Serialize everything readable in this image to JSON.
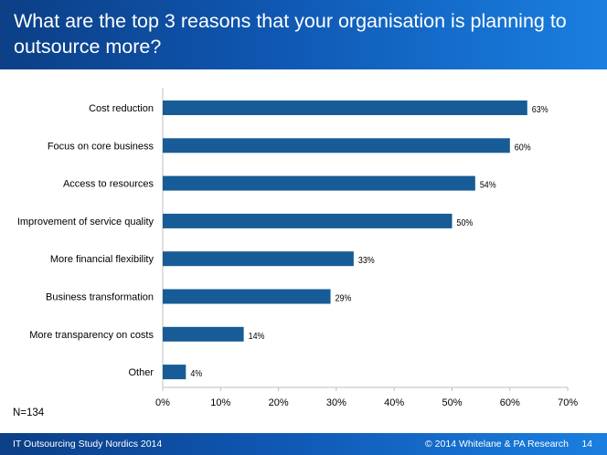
{
  "header": {
    "title": "What are the top 3 reasons that your organisation is planning to outsource more?"
  },
  "chart_data": {
    "type": "bar",
    "orientation": "horizontal",
    "categories": [
      "Cost reduction",
      "Focus on core business",
      "Access to resources",
      "Improvement of service quality",
      "More financial flexibility",
      "Business transformation",
      "More transparency on costs",
      "Other"
    ],
    "values": [
      63,
      60,
      54,
      50,
      33,
      29,
      14,
      4
    ],
    "value_labels": [
      "63%",
      "60%",
      "54%",
      "50%",
      "33%",
      "29%",
      "14%",
      "4%"
    ],
    "x_ticks": [
      0,
      10,
      20,
      30,
      40,
      50,
      60,
      70
    ],
    "x_tick_labels": [
      "0%",
      "10%",
      "20%",
      "30%",
      "40%",
      "50%",
      "60%",
      "70%"
    ],
    "xlim": [
      0,
      70
    ],
    "grid": false,
    "bar_color": "#175c96",
    "title": "",
    "xlabel": "",
    "ylabel": ""
  },
  "sample_size": "N=134",
  "footer": {
    "left": "IT Outsourcing Study Nordics 2014",
    "copyright": "© 2014 Whitelane & PA Research",
    "page_number": "14"
  }
}
